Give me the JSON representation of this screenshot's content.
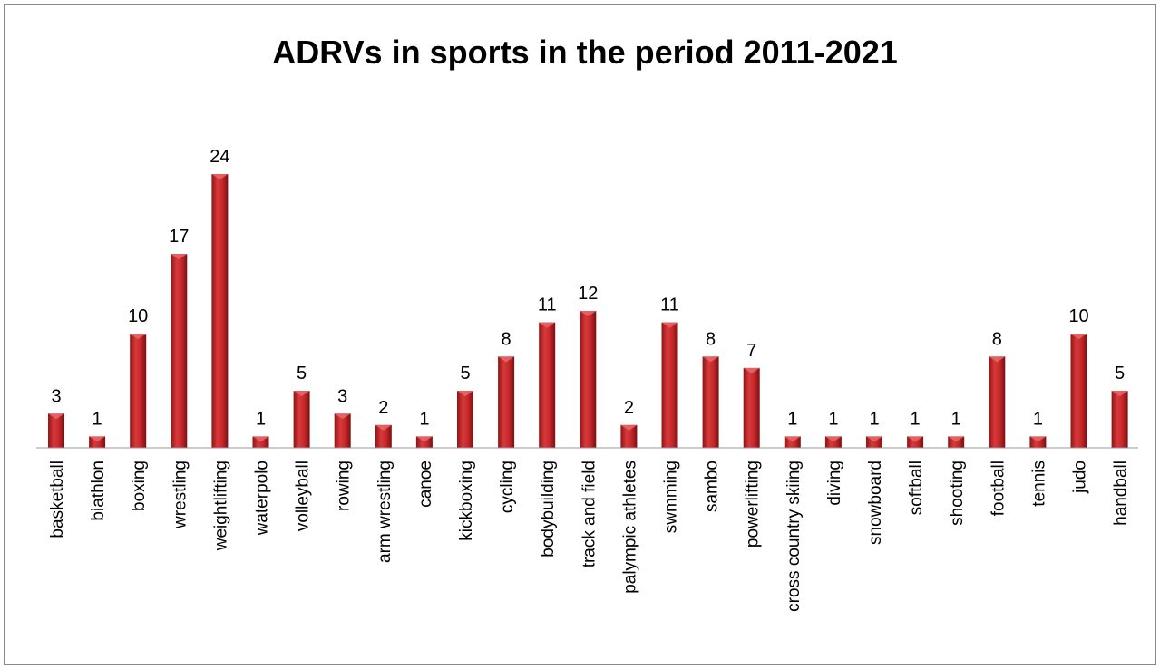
{
  "chart_data": {
    "type": "bar",
    "title": "ADRVs in sports in the period 2011-2021",
    "xlabel": "",
    "ylabel": "",
    "grid": false,
    "legend": "none",
    "bar_color": "#c0282a",
    "categories": [
      "basketball",
      "biathlon",
      "boxing",
      "wrestling",
      "weightlifting",
      "waterpolo",
      "volleyball",
      "rowing",
      "arm wrestling",
      "canoe",
      "kickboxing",
      "cycling",
      "bodybuilding",
      "track and field",
      "palympic athletes",
      "swmming",
      "sambo",
      "powerlifting",
      "cross country skiing",
      "diving",
      "snowboard",
      "softball",
      "shooting",
      "football",
      "tennis",
      "judo",
      "handball"
    ],
    "values": [
      3,
      1,
      10,
      17,
      24,
      1,
      5,
      3,
      2,
      1,
      5,
      8,
      11,
      12,
      2,
      11,
      8,
      7,
      1,
      1,
      1,
      1,
      1,
      8,
      1,
      10,
      5
    ],
    "ylim": [
      0,
      24
    ]
  }
}
